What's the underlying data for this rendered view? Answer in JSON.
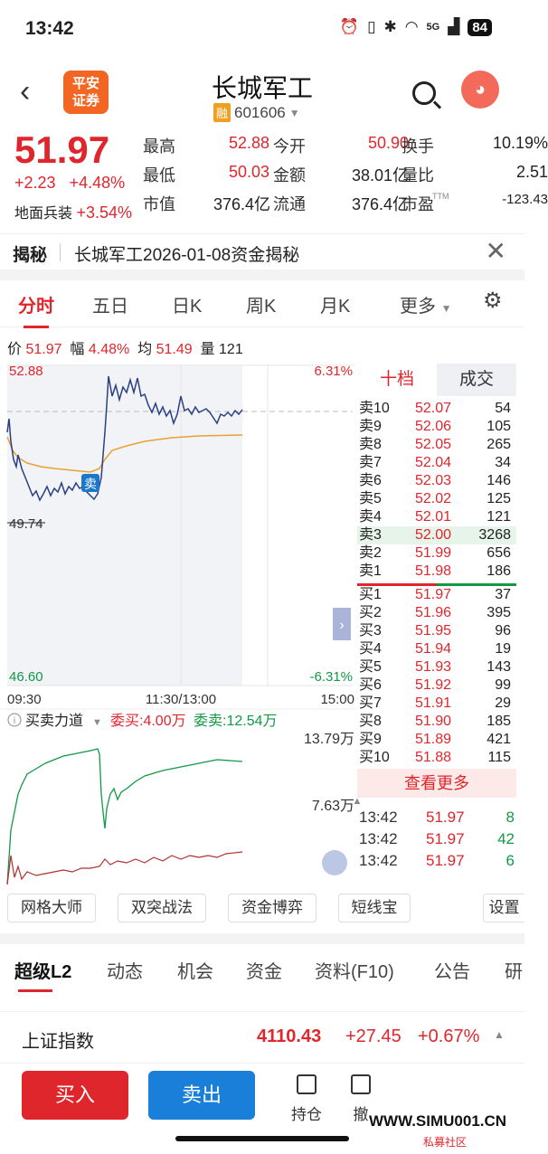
{
  "status": {
    "time": "13:42",
    "signal": "5G",
    "battery": "84"
  },
  "header": {
    "broker_logo": "平安\n证券",
    "title": "长城军工",
    "margin_badge": "融",
    "code": "601606"
  },
  "quote": {
    "price": "51.97",
    "change": "+2.23",
    "change_pct": "+4.48%",
    "sector_label": "地面兵装",
    "sector_pct": "+3.54%",
    "cells": [
      {
        "label": "最高",
        "value": "52.88",
        "color": "#e0262d"
      },
      {
        "label": "今开",
        "value": "50.90",
        "color": "#e0262d"
      },
      {
        "label": "换手",
        "value": "10.19%",
        "color": "#222"
      },
      {
        "label": "最低",
        "value": "50.03",
        "color": "#e0262d"
      },
      {
        "label": "金额",
        "value": "38.01亿",
        "color": "#222"
      },
      {
        "label": "量比",
        "value": "2.51",
        "color": "#222"
      },
      {
        "label": "市值",
        "value": "376.4亿",
        "color": "#222"
      },
      {
        "label": "流通",
        "value": "376.4亿",
        "color": "#222"
      },
      {
        "label": "市盈",
        "value": "-123.43",
        "color": "#222"
      }
    ],
    "pe_suffix": "TTM"
  },
  "notice": {
    "label": "揭秘",
    "text": "长城军工2026-01-08资金揭秘"
  },
  "tabs": [
    "分时",
    "五日",
    "日K",
    "周K",
    "月K",
    "更多"
  ],
  "infoline": {
    "price_label": "价",
    "price": "51.97",
    "pct_label": "幅",
    "pct": "4.48%",
    "avg_label": "均",
    "avg": "51.49",
    "vol_label": "量",
    "vol": "121"
  },
  "chart": {
    "ymax": "52.88",
    "ymax_pct": "6.31%",
    "ymin": "46.60",
    "ymin_pct": "-6.31%",
    "ymid_label": "49.74",
    "t_start": "09:30",
    "t_mid": "11:30/13:00",
    "t_end": "15:00",
    "marker": "卖"
  },
  "force": {
    "title": "买卖力道",
    "buy_label": "委买:",
    "buy": "4.00万",
    "sell_label": "委卖:",
    "sell": "12.54万",
    "top": "13.79万",
    "mid": "7.63万"
  },
  "orderbook": {
    "tab1": "十档",
    "tab2": "成交",
    "more": "查看更多",
    "asks": [
      {
        "l": "卖10",
        "p": "52.07",
        "v": "54"
      },
      {
        "l": "卖9",
        "p": "52.06",
        "v": "105"
      },
      {
        "l": "卖8",
        "p": "52.05",
        "v": "265"
      },
      {
        "l": "卖7",
        "p": "52.04",
        "v": "34"
      },
      {
        "l": "卖6",
        "p": "52.03",
        "v": "146"
      },
      {
        "l": "卖5",
        "p": "52.02",
        "v": "125"
      },
      {
        "l": "卖4",
        "p": "52.01",
        "v": "121"
      },
      {
        "l": "卖3",
        "p": "52.00",
        "v": "3268"
      },
      {
        "l": "卖2",
        "p": "51.99",
        "v": "656"
      },
      {
        "l": "卖1",
        "p": "51.98",
        "v": "186"
      }
    ],
    "bids": [
      {
        "l": "买1",
        "p": "51.97",
        "v": "37"
      },
      {
        "l": "买2",
        "p": "51.96",
        "v": "395"
      },
      {
        "l": "买3",
        "p": "51.95",
        "v": "96"
      },
      {
        "l": "买4",
        "p": "51.94",
        "v": "19"
      },
      {
        "l": "买5",
        "p": "51.93",
        "v": "143"
      },
      {
        "l": "买6",
        "p": "51.92",
        "v": "99"
      },
      {
        "l": "买7",
        "p": "51.91",
        "v": "29"
      },
      {
        "l": "买8",
        "p": "51.90",
        "v": "185"
      },
      {
        "l": "买9",
        "p": "51.89",
        "v": "421"
      },
      {
        "l": "买10",
        "p": "51.88",
        "v": "115"
      }
    ]
  },
  "ticks": [
    {
      "t": "13:42",
      "p": "51.97",
      "v": "8"
    },
    {
      "t": "13:42",
      "p": "51.97",
      "v": "42"
    },
    {
      "t": "13:42",
      "p": "51.97",
      "v": "6"
    }
  ],
  "tools": [
    "网格大师",
    "双突战法",
    "资金博弈",
    "短线宝",
    "设置"
  ],
  "tabs2": [
    "超级L2",
    "动态",
    "机会",
    "资金",
    "资料(F10)",
    "公告",
    "研"
  ],
  "index": {
    "name": "上证指数",
    "value": "4110.43",
    "change": "+27.45",
    "pct": "+0.67%"
  },
  "bottom": {
    "buy": "买入",
    "sell": "卖出",
    "hold": "持仓",
    "cancel": "撤"
  },
  "watermark": {
    "site": "WWW.SIMU001.CN",
    "sub": "私募社区"
  }
}
